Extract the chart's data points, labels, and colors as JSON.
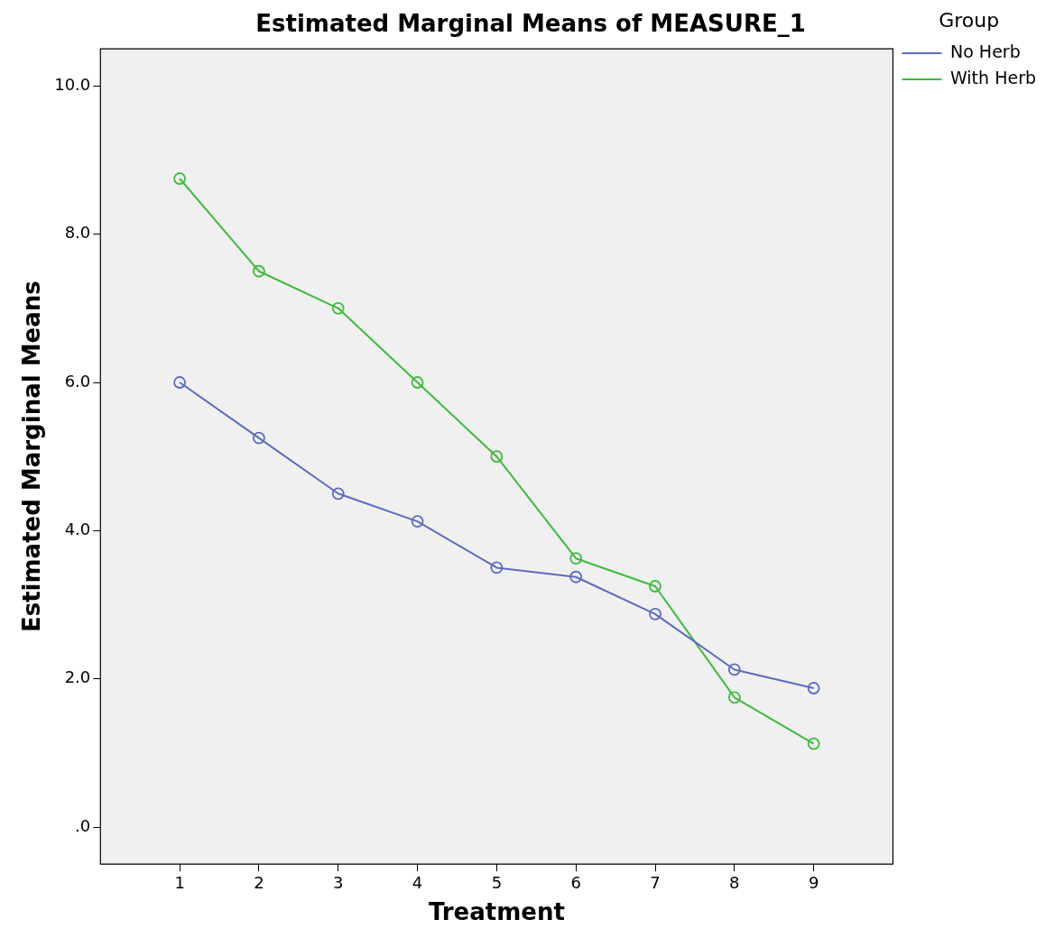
{
  "chart_data": {
    "type": "line",
    "title": "Estimated Marginal Means of MEASURE_1",
    "xlabel": "Treatment",
    "ylabel": "Estimated Marginal Means",
    "legend_title": "Group",
    "legend": "top right",
    "marker": "circle",
    "grid": false,
    "x": [
      1,
      2,
      3,
      4,
      5,
      6,
      7,
      8,
      9
    ],
    "xlim": [
      0,
      10
    ],
    "xticks": [
      1,
      2,
      3,
      4,
      5,
      6,
      7,
      8,
      9
    ],
    "ylim": [
      -0.5,
      10.5
    ],
    "yticks": [
      {
        "value": 0,
        "label": ".0"
      },
      {
        "value": 2,
        "label": "2.0"
      },
      {
        "value": 4,
        "label": "4.0"
      },
      {
        "value": 6,
        "label": "6.0"
      },
      {
        "value": 8,
        "label": "8.0"
      },
      {
        "value": 10,
        "label": "10.0"
      }
    ],
    "series": [
      {
        "name": "No Herb",
        "color": "#5c6bc0",
        "values": [
          6.0,
          5.25,
          4.5,
          4.125,
          3.5,
          3.375,
          2.875,
          2.125,
          1.875
        ]
      },
      {
        "name": "With Herb",
        "color": "#3dbb3d",
        "values": [
          8.75,
          7.5,
          7.0,
          6.0,
          5.0,
          3.625,
          3.25,
          1.75,
          1.125
        ]
      }
    ]
  }
}
